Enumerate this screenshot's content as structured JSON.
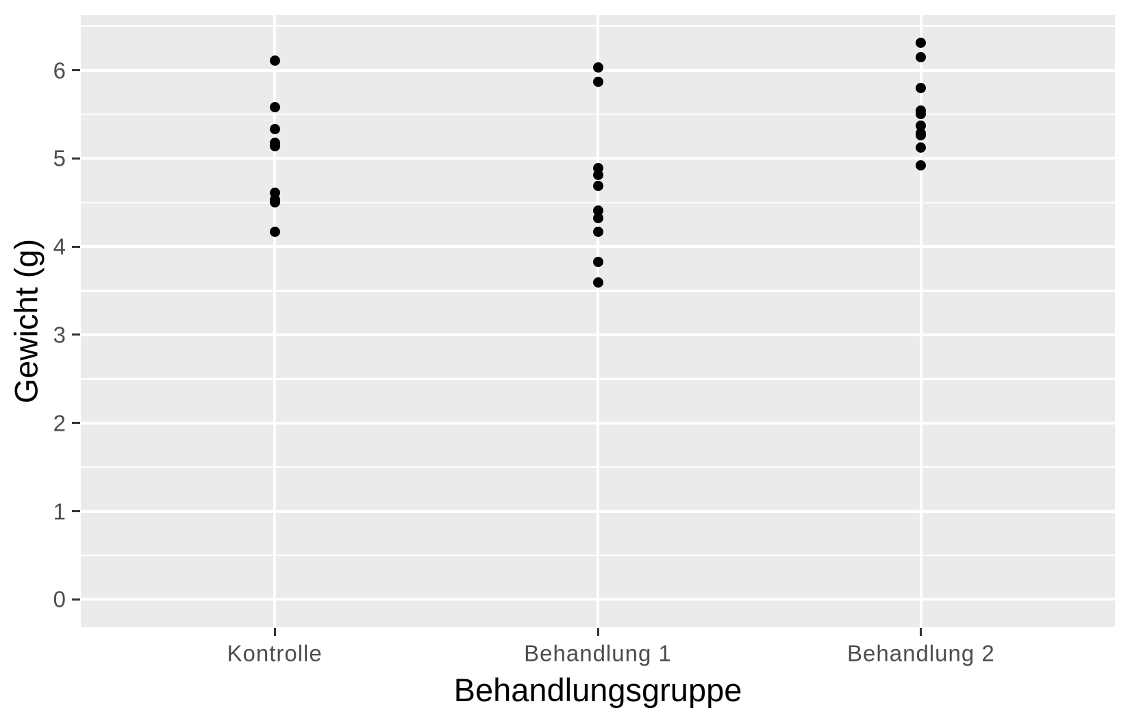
{
  "figure_style": {
    "background": "#FFFFFF",
    "panel_background": "#EBEBEB",
    "grid_color": "#FFFFFF",
    "tick_mark_color": "#333333",
    "tick_label_color": "#4D4D4D",
    "axis_title_color": "#000000",
    "point_color": "#000000"
  },
  "chart_data": {
    "type": "scatter",
    "title": "",
    "xlabel": "Behandlungsgruppe",
    "ylabel": "Gewicht (g)",
    "categories": [
      "Kontrolle",
      "Behandlung 1",
      "Behandlung 2"
    ],
    "series": [
      {
        "name": "Kontrolle",
        "values": [
          4.17,
          5.58,
          5.18,
          6.11,
          4.5,
          4.61,
          5.17,
          4.53,
          5.33,
          5.14
        ]
      },
      {
        "name": "Behandlung 1",
        "values": [
          4.81,
          4.17,
          4.41,
          3.59,
          5.87,
          3.83,
          6.03,
          4.89,
          4.32,
          4.69
        ]
      },
      {
        "name": "Behandlung 2",
        "values": [
          6.31,
          5.12,
          5.54,
          5.5,
          5.37,
          5.29,
          4.92,
          6.15,
          5.8,
          5.26
        ]
      }
    ],
    "y_ticks": [
      0,
      1,
      2,
      3,
      4,
      5,
      6
    ],
    "y_minor_ticks": [
      0.5,
      1.5,
      2.5,
      3.5,
      4.5,
      5.5,
      6.5
    ],
    "ylim": [
      -0.3155,
      6.6255
    ],
    "legend": "none",
    "grid": {
      "horizontal_major": true,
      "horizontal_minor": true,
      "vertical_major_at_categories": true,
      "vertical_minor": false
    }
  }
}
